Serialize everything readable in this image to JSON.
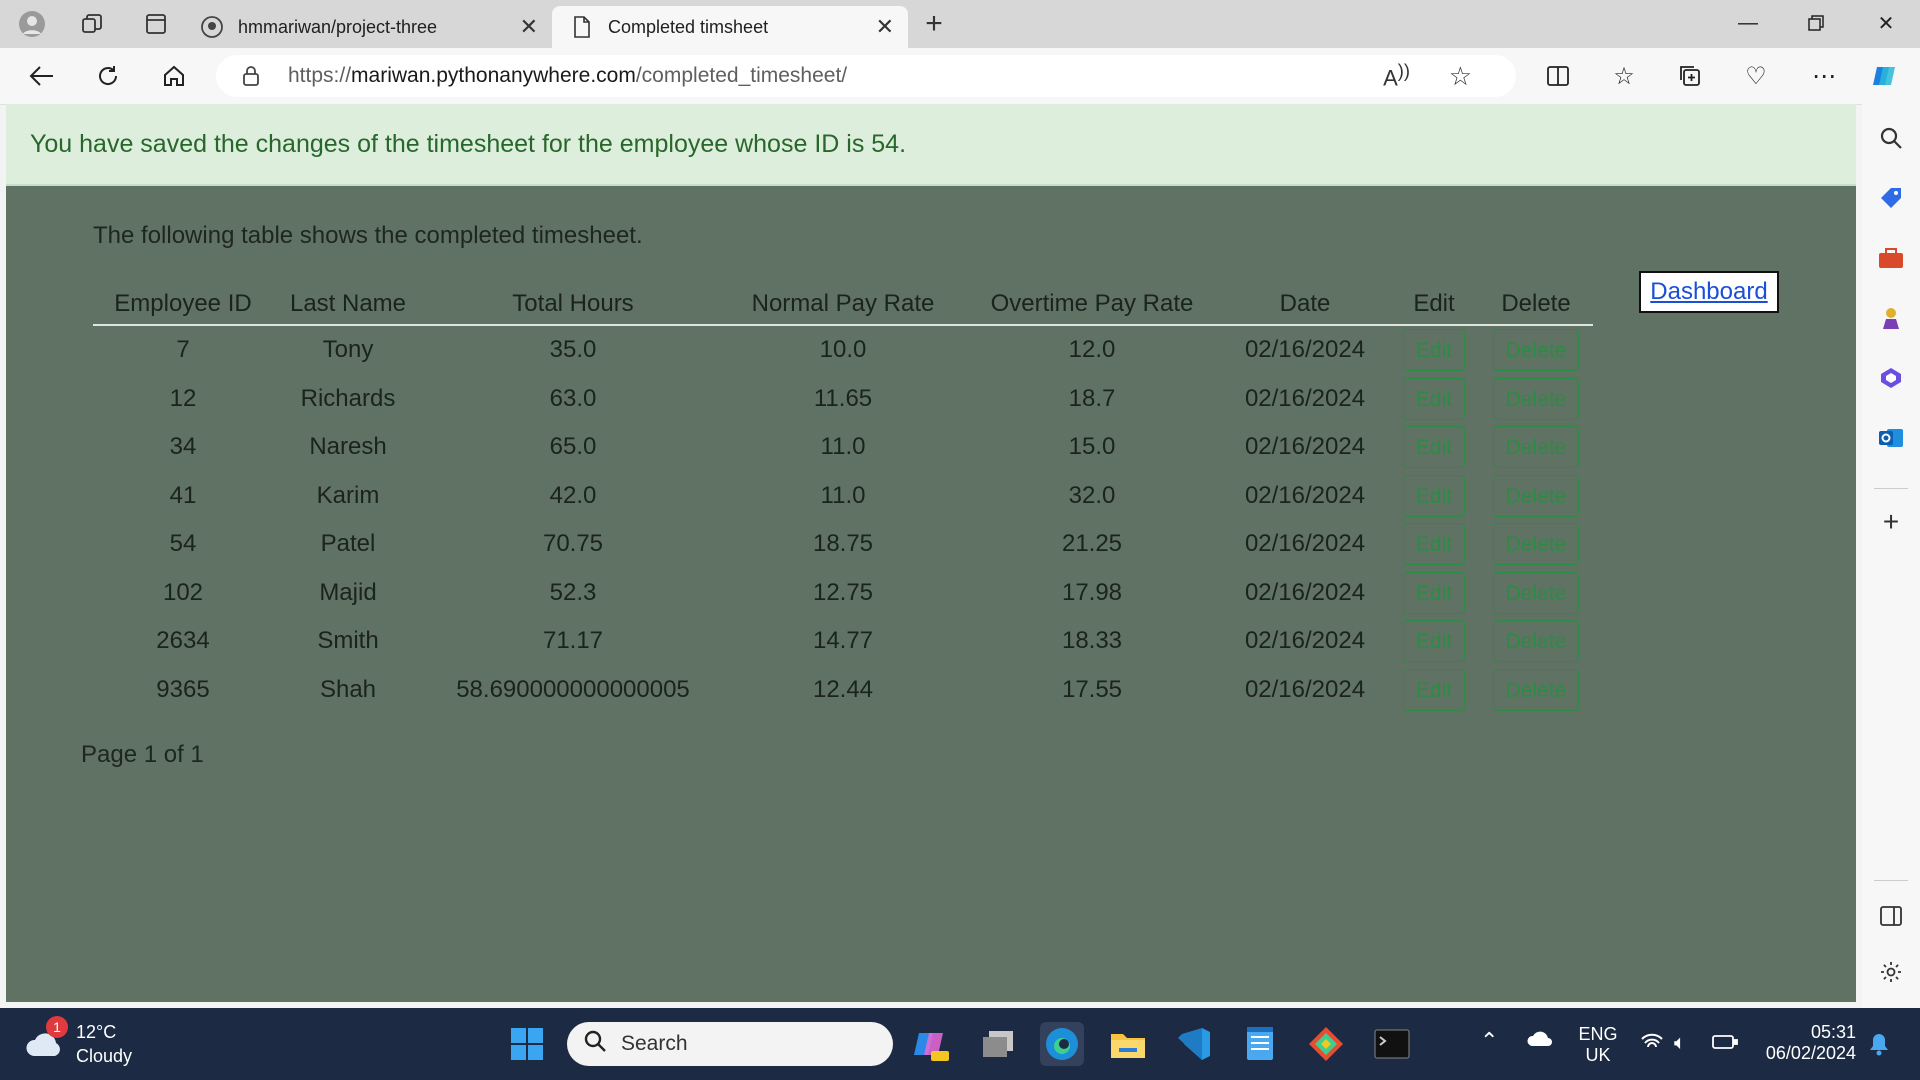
{
  "browser": {
    "tabs": [
      {
        "title": "hmmariwan/project-three",
        "active": false
      },
      {
        "title": "Completed timsheet",
        "active": true
      }
    ],
    "url_prefix": "https://",
    "url_host": "mariwan.pythonanywhere.com",
    "url_path": "/completed_timesheet/"
  },
  "alert": {
    "message": "You have saved the changes of the timesheet for the employee whose ID is 54."
  },
  "intro_text": "The following table shows the completed timesheet.",
  "dashboard_link": "Dashboard",
  "table": {
    "headers": [
      "Employee ID",
      "Last Name",
      "Total Hours",
      "Normal Pay Rate",
      "Overtime Pay Rate",
      "Date",
      "Edit",
      "Delete"
    ],
    "edit_label": "Edit",
    "delete_label": "Delete",
    "rows": [
      [
        "7",
        "Tony",
        "35.0",
        "10.0",
        "12.0",
        "02/16/2024"
      ],
      [
        "12",
        "Richards",
        "63.0",
        "11.65",
        "18.7",
        "02/16/2024"
      ],
      [
        "34",
        "Naresh",
        "65.0",
        "11.0",
        "15.0",
        "02/16/2024"
      ],
      [
        "41",
        "Karim",
        "42.0",
        "11.0",
        "32.0",
        "02/16/2024"
      ],
      [
        "54",
        "Patel",
        "70.75",
        "18.75",
        "21.25",
        "02/16/2024"
      ],
      [
        "102",
        "Majid",
        "52.3",
        "12.75",
        "17.98",
        "02/16/2024"
      ],
      [
        "2634",
        "Smith",
        "71.17",
        "14.77",
        "18.33",
        "02/16/2024"
      ],
      [
        "9365",
        "Shah",
        "58.690000000000005",
        "12.44",
        "17.55",
        "02/16/2024"
      ]
    ]
  },
  "pager": "Page 1 of 1",
  "taskbar": {
    "weather_temp": "12°C",
    "weather_desc": "Cloudy",
    "weather_badge": "1",
    "search_placeholder": "Search",
    "lang": "ENG",
    "region": "UK",
    "time": "05:31",
    "date": "06/02/2024"
  }
}
